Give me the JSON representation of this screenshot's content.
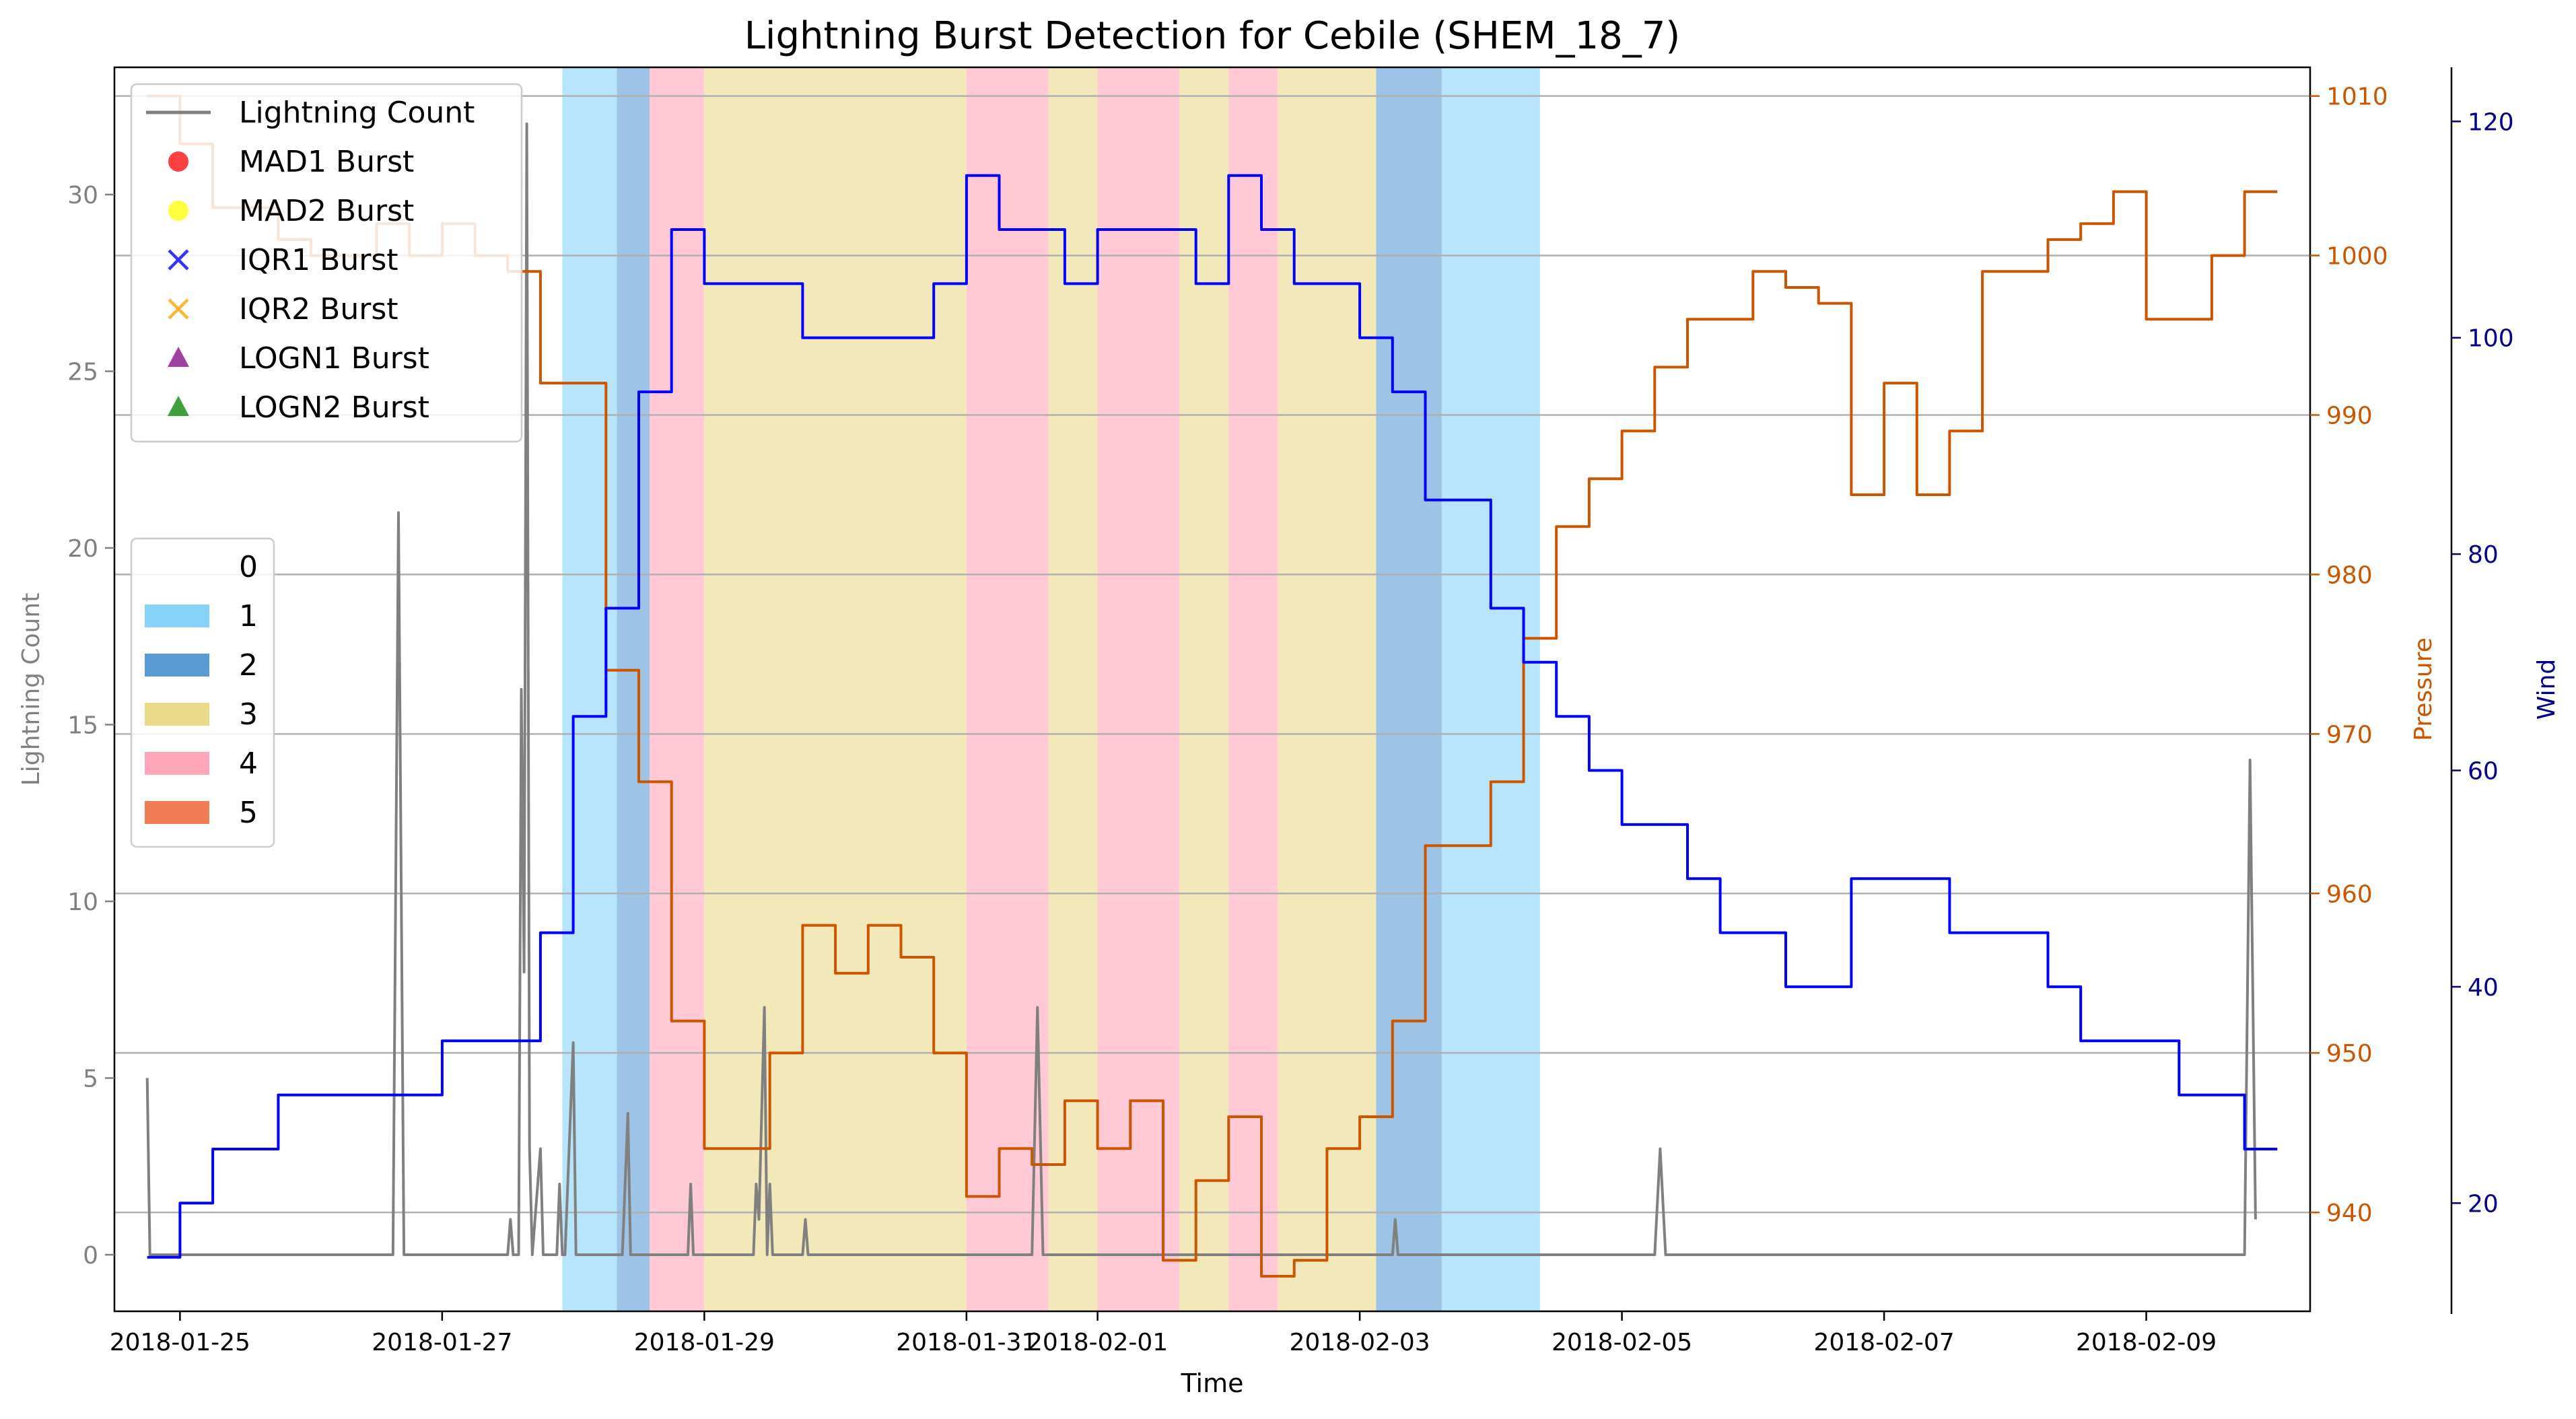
{
  "chart_data": {
    "type": "line",
    "title": "Lightning Burst Detection for Cebile (SHEM_18_7)",
    "xlabel": "Time",
    "x_range": [
      "2018-01-24T12:00",
      "2018-02-10T06:00"
    ],
    "x_ticks": [
      "2018-01-25",
      "2018-01-27",
      "2018-01-29",
      "2018-01-31",
      "2018-02-01",
      "2018-02-03",
      "2018-02-05",
      "2018-02-07",
      "2018-02-09"
    ],
    "left_axis": {
      "label": "Lightning Count",
      "color": "#808080",
      "range": [
        -1.6,
        33.6
      ],
      "ticks": [
        0,
        5,
        10,
        15,
        20,
        25,
        30
      ]
    },
    "pressure_axis": {
      "label": "Pressure",
      "color": "#cc5500",
      "range": [
        933.8,
        1011.8
      ],
      "ticks": [
        940,
        950,
        960,
        970,
        980,
        990,
        1000,
        1010
      ]
    },
    "wind_axis": {
      "label": "Wind",
      "color": "#00008b",
      "range": [
        10,
        125
      ],
      "ticks": [
        20,
        40,
        60,
        80,
        100,
        120
      ]
    },
    "grid": "horizontal",
    "legend_top": {
      "placement": "top-left",
      "entries": [
        {
          "label": "Lightning Count",
          "marker": "line",
          "color": "#808080"
        },
        {
          "label": "MAD1 Burst",
          "marker": "circle",
          "color": "#ff0000"
        },
        {
          "label": "MAD2 Burst",
          "marker": "circle",
          "color": "#ffff00"
        },
        {
          "label": "IQR1 Burst",
          "marker": "x",
          "color": "#0000ff"
        },
        {
          "label": "IQR2 Burst",
          "marker": "x",
          "color": "#ffa500"
        },
        {
          "label": "LOGN1 Burst",
          "marker": "triangle",
          "color": "#800080"
        },
        {
          "label": "LOGN2 Burst",
          "marker": "triangle",
          "color": "#008000"
        }
      ]
    },
    "category_legend": {
      "placement": "center-left",
      "entries": [
        {
          "label": "0",
          "color": "#ffffff"
        },
        {
          "label": "1",
          "color": "#87d3f8"
        },
        {
          "label": "2",
          "color": "#5b9bd5"
        },
        {
          "label": "3",
          "color": "#ebd98a"
        },
        {
          "label": "4",
          "color": "#ffa6ba"
        },
        {
          "label": "5",
          "color": "#f07d55"
        }
      ]
    },
    "category_bands": [
      {
        "category": 1,
        "start": "2018-01-27T22:00",
        "end": "2018-01-28T08:00"
      },
      {
        "category": 2,
        "start": "2018-01-28T08:00",
        "end": "2018-01-28T14:00"
      },
      {
        "category": 4,
        "start": "2018-01-28T14:00",
        "end": "2018-01-29T00:00"
      },
      {
        "category": 3,
        "start": "2018-01-29T00:00",
        "end": "2018-01-31T00:00"
      },
      {
        "category": 4,
        "start": "2018-01-31T00:00",
        "end": "2018-01-31T15:00"
      },
      {
        "category": 3,
        "start": "2018-01-31T15:00",
        "end": "2018-02-01T00:00"
      },
      {
        "category": 4,
        "start": "2018-02-01T00:00",
        "end": "2018-02-01T15:00"
      },
      {
        "category": 3,
        "start": "2018-02-01T15:00",
        "end": "2018-02-02T00:00"
      },
      {
        "category": 4,
        "start": "2018-02-02T00:00",
        "end": "2018-02-02T09:00"
      },
      {
        "category": 3,
        "start": "2018-02-02T09:00",
        "end": "2018-02-03T03:00"
      },
      {
        "category": 2,
        "start": "2018-02-03T03:00",
        "end": "2018-02-03T15:00"
      },
      {
        "category": 1,
        "start": "2018-02-03T15:00",
        "end": "2018-02-04T09:00"
      }
    ],
    "series": [
      {
        "name": "Lightning Count",
        "axis": "left",
        "color": "#808080",
        "step": false,
        "points": [
          [
            "2018-01-24T18:00",
            5
          ],
          [
            "2018-01-24T18:30",
            0
          ],
          [
            "2018-01-26T15:00",
            0
          ],
          [
            "2018-01-26T16:00",
            21
          ],
          [
            "2018-01-26T17:00",
            0
          ],
          [
            "2018-01-27T12:00",
            0
          ],
          [
            "2018-01-27T12:30",
            1
          ],
          [
            "2018-01-27T13:00",
            0
          ],
          [
            "2018-01-27T14:00",
            0
          ],
          [
            "2018-01-27T14:30",
            16
          ],
          [
            "2018-01-27T15:00",
            8
          ],
          [
            "2018-01-27T15:30",
            32
          ],
          [
            "2018-01-27T16:00",
            3
          ],
          [
            "2018-01-27T16:30",
            0
          ],
          [
            "2018-01-27T18:00",
            3
          ],
          [
            "2018-01-27T18:30",
            0
          ],
          [
            "2018-01-27T21:00",
            0
          ],
          [
            "2018-01-27T21:30",
            2
          ],
          [
            "2018-01-27T22:00",
            0
          ],
          [
            "2018-01-27T22:30",
            0
          ],
          [
            "2018-01-28T00:00",
            6
          ],
          [
            "2018-01-28T00:30",
            0
          ],
          [
            "2018-01-28T09:00",
            0
          ],
          [
            "2018-01-28T10:00",
            4
          ],
          [
            "2018-01-28T10:30",
            0
          ],
          [
            "2018-01-28T21:00",
            0
          ],
          [
            "2018-01-28T21:30",
            2
          ],
          [
            "2018-01-28T22:00",
            0
          ],
          [
            "2018-01-29T09:00",
            0
          ],
          [
            "2018-01-29T09:30",
            2
          ],
          [
            "2018-01-29T10:00",
            1
          ],
          [
            "2018-01-29T11:00",
            7
          ],
          [
            "2018-01-29T11:30",
            0
          ],
          [
            "2018-01-29T12:00",
            2
          ],
          [
            "2018-01-29T12:30",
            0
          ],
          [
            "2018-01-29T18:00",
            0
          ],
          [
            "2018-01-29T18:30",
            1
          ],
          [
            "2018-01-29T19:00",
            0
          ],
          [
            "2018-01-31T12:00",
            0
          ],
          [
            "2018-01-31T13:00",
            7
          ],
          [
            "2018-01-31T14:00",
            0
          ],
          [
            "2018-02-03T06:00",
            0
          ],
          [
            "2018-02-03T06:30",
            1
          ],
          [
            "2018-02-03T07:00",
            0
          ],
          [
            "2018-02-05T06:00",
            0
          ],
          [
            "2018-02-05T07:00",
            3
          ],
          [
            "2018-02-05T08:00",
            0
          ],
          [
            "2018-02-09T18:00",
            0
          ],
          [
            "2018-02-09T19:00",
            14
          ],
          [
            "2018-02-09T20:00",
            1
          ]
        ]
      },
      {
        "name": "Pressure",
        "axis": "pressure",
        "color": "#cc5500",
        "step": true,
        "points": [
          [
            "2018-01-24T18:00",
            1010
          ],
          [
            "2018-01-25T00:00",
            1007
          ],
          [
            "2018-01-25T06:00",
            1003
          ],
          [
            "2018-01-25T18:00",
            1001
          ],
          [
            "2018-01-26T00:00",
            1000
          ],
          [
            "2018-01-26T12:00",
            1002
          ],
          [
            "2018-01-26T18:00",
            1000
          ],
          [
            "2018-01-27T00:00",
            1002
          ],
          [
            "2018-01-27T06:00",
            1000
          ],
          [
            "2018-01-27T12:00",
            999
          ],
          [
            "2018-01-27T18:00",
            992
          ],
          [
            "2018-01-28T06:00",
            974
          ],
          [
            "2018-01-28T12:00",
            967
          ],
          [
            "2018-01-28T18:00",
            952
          ],
          [
            "2018-01-29T00:00",
            944
          ],
          [
            "2018-01-29T12:00",
            950
          ],
          [
            "2018-01-29T18:00",
            958
          ],
          [
            "2018-01-30T00:00",
            955
          ],
          [
            "2018-01-30T06:00",
            958
          ],
          [
            "2018-01-30T12:00",
            956
          ],
          [
            "2018-01-30T18:00",
            950
          ],
          [
            "2018-01-31T00:00",
            941
          ],
          [
            "2018-01-31T06:00",
            944
          ],
          [
            "2018-01-31T12:00",
            943
          ],
          [
            "2018-01-31T18:00",
            947
          ],
          [
            "2018-02-01T00:00",
            944
          ],
          [
            "2018-02-01T06:00",
            947
          ],
          [
            "2018-02-01T12:00",
            937
          ],
          [
            "2018-02-01T18:00",
            942
          ],
          [
            "2018-02-02T00:00",
            946
          ],
          [
            "2018-02-02T06:00",
            936
          ],
          [
            "2018-02-02T12:00",
            937
          ],
          [
            "2018-02-02T18:00",
            944
          ],
          [
            "2018-02-03T00:00",
            946
          ],
          [
            "2018-02-03T06:00",
            952
          ],
          [
            "2018-02-03T12:00",
            963
          ],
          [
            "2018-02-04T00:00",
            967
          ],
          [
            "2018-02-04T06:00",
            976
          ],
          [
            "2018-02-04T12:00",
            983
          ],
          [
            "2018-02-04T18:00",
            986
          ],
          [
            "2018-02-05T00:00",
            989
          ],
          [
            "2018-02-05T06:00",
            993
          ],
          [
            "2018-02-05T12:00",
            996
          ],
          [
            "2018-02-06T00:00",
            999
          ],
          [
            "2018-02-06T06:00",
            998
          ],
          [
            "2018-02-06T12:00",
            997
          ],
          [
            "2018-02-06T18:00",
            985
          ],
          [
            "2018-02-07T00:00",
            992
          ],
          [
            "2018-02-07T06:00",
            985
          ],
          [
            "2018-02-07T12:00",
            989
          ],
          [
            "2018-02-07T18:00",
            999
          ],
          [
            "2018-02-08T06:00",
            1001
          ],
          [
            "2018-02-08T12:00",
            1002
          ],
          [
            "2018-02-08T18:00",
            1004
          ],
          [
            "2018-02-09T00:00",
            996
          ],
          [
            "2018-02-09T12:00",
            1000
          ],
          [
            "2018-02-09T18:00",
            1004
          ],
          [
            "2018-02-10T00:00",
            1004
          ]
        ]
      },
      {
        "name": "Wind",
        "axis": "wind",
        "color": "#0000ff",
        "step": true,
        "points": [
          [
            "2018-01-24T18:00",
            15
          ],
          [
            "2018-01-25T00:00",
            20
          ],
          [
            "2018-01-25T06:00",
            25
          ],
          [
            "2018-01-25T18:00",
            30
          ],
          [
            "2018-01-27T00:00",
            35
          ],
          [
            "2018-01-27T18:00",
            45
          ],
          [
            "2018-01-28T00:00",
            65
          ],
          [
            "2018-01-28T06:00",
            75
          ],
          [
            "2018-01-28T12:00",
            95
          ],
          [
            "2018-01-28T18:00",
            110
          ],
          [
            "2018-01-29T00:00",
            105
          ],
          [
            "2018-01-29T18:00",
            100
          ],
          [
            "2018-01-30T18:00",
            105
          ],
          [
            "2018-01-31T00:00",
            115
          ],
          [
            "2018-01-31T06:00",
            110
          ],
          [
            "2018-01-31T18:00",
            105
          ],
          [
            "2018-02-01T00:00",
            110
          ],
          [
            "2018-02-01T18:00",
            105
          ],
          [
            "2018-02-02T00:00",
            115
          ],
          [
            "2018-02-02T06:00",
            110
          ],
          [
            "2018-02-02T12:00",
            105
          ],
          [
            "2018-02-03T00:00",
            100
          ],
          [
            "2018-02-03T06:00",
            95
          ],
          [
            "2018-02-03T12:00",
            85
          ],
          [
            "2018-02-04T00:00",
            75
          ],
          [
            "2018-02-04T06:00",
            70
          ],
          [
            "2018-02-04T12:00",
            65
          ],
          [
            "2018-02-04T18:00",
            60
          ],
          [
            "2018-02-05T00:00",
            55
          ],
          [
            "2018-02-05T12:00",
            50
          ],
          [
            "2018-02-05T18:00",
            45
          ],
          [
            "2018-02-06T06:00",
            40
          ],
          [
            "2018-02-06T18:00",
            50
          ],
          [
            "2018-02-07T12:00",
            45
          ],
          [
            "2018-02-08T06:00",
            40
          ],
          [
            "2018-02-08T12:00",
            35
          ],
          [
            "2018-02-09T06:00",
            30
          ],
          [
            "2018-02-09T18:00",
            25
          ],
          [
            "2018-02-10T00:00",
            25
          ]
        ]
      }
    ]
  }
}
